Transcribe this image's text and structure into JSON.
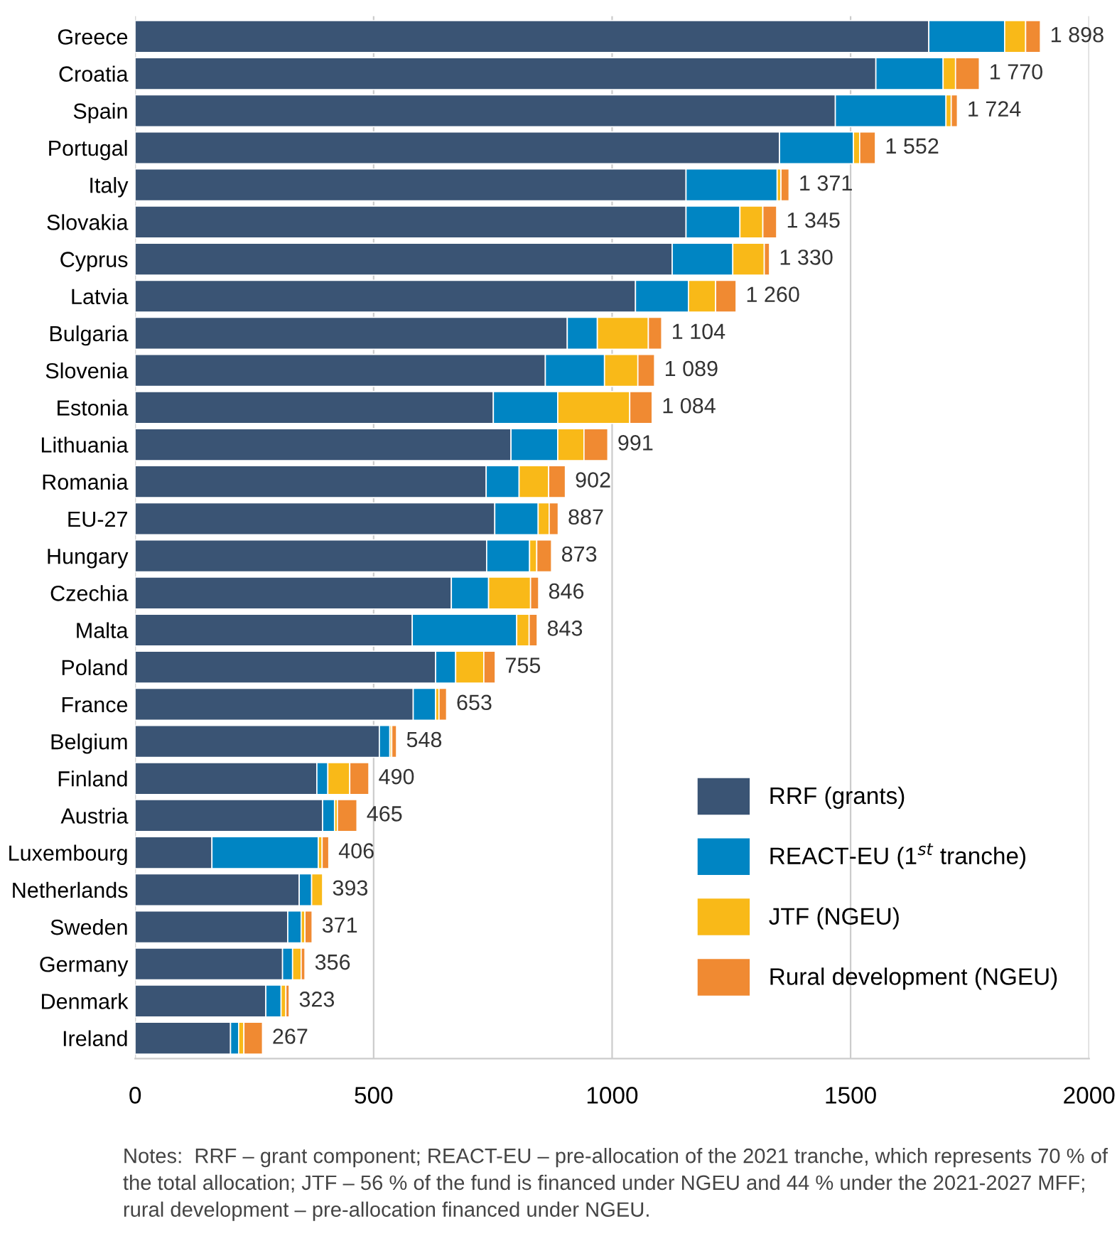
{
  "chart_data": {
    "type": "bar",
    "orientation": "horizontal",
    "stacked": true,
    "categories": [
      "Greece",
      "Croatia",
      "Spain",
      "Portugal",
      "Italy",
      "Slovakia",
      "Cyprus",
      "Latvia",
      "Bulgaria",
      "Slovenia",
      "Estonia",
      "Lithuania",
      "Romania",
      "EU-27",
      "Hungary",
      "Czechia",
      "Malta",
      "Poland",
      "France",
      "Belgium",
      "Finland",
      "Austria",
      "Luxembourg",
      "Netherlands",
      "Sweden",
      "Germany",
      "Denmark",
      "Ireland"
    ],
    "series": [
      {
        "name": "RRF (grants)",
        "color": "#3a5474",
        "values": [
          1664,
          1553,
          1468,
          1351,
          1155,
          1155,
          1126,
          1049,
          906,
          860,
          751,
          788,
          736,
          754,
          737,
          663,
          581,
          630,
          583,
          512,
          381,
          393,
          161,
          344,
          320,
          309,
          274,
          200
        ]
      },
      {
        "name": "REACT-EU (1$^{st}$ tranche)",
        "color": "#0085c3",
        "values": [
          159,
          141,
          232,
          155,
          191,
          113,
          127,
          111,
          63,
          124,
          135,
          98,
          69,
          91,
          90,
          78,
          219,
          42,
          47,
          22,
          23,
          25,
          223,
          26,
          28,
          21,
          32,
          17
        ]
      },
      {
        "name": "JTF (NGEU)",
        "color": "#f9b918",
        "values": [
          44,
          26,
          11,
          13,
          8,
          48,
          66,
          57,
          107,
          70,
          151,
          55,
          62,
          23,
          15,
          88,
          26,
          59,
          7,
          4,
          46,
          6,
          8,
          23,
          8,
          18,
          10,
          11
        ]
      },
      {
        "name": "Rural development (NGEU)",
        "color": "#f08a32",
        "values": [
          31,
          50,
          13,
          33,
          17,
          29,
          11,
          43,
          28,
          35,
          47,
          50,
          35,
          19,
          31,
          17,
          17,
          24,
          16,
          10,
          40,
          41,
          14,
          null,
          15,
          8,
          7,
          39
        ]
      }
    ],
    "totals": [
      "1 898",
      "1 770",
      "1 724",
      "1 552",
      "1 371",
      "1 345",
      "1 330",
      "1 260",
      "1 104",
      "1 089",
      "1 084",
      "991",
      "902",
      "887",
      "873",
      "846",
      "843",
      "755",
      "653",
      "548",
      "490",
      "465",
      "406",
      "393",
      "371",
      "356",
      "323",
      "267"
    ],
    "xlim": [
      0,
      2000
    ],
    "xticks": [
      0,
      500,
      1000,
      1500,
      2000
    ],
    "grid": "x",
    "legend": "bottom right",
    "annotations": [
      "Notes:  RRF – grant component; REACT-EU – pre-allocation of the 2021 tranche, which represents 70 % of the total allocation; JTF – 56 % of the fund is financed under NGEU and 44 % under the 2021-2027 MFF; rural development – pre-allocation financed under NGEU."
    ]
  }
}
